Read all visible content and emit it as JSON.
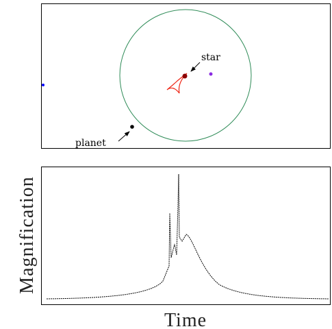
{
  "upper_panel": {
    "star_label": "star",
    "planet_label": "planet"
  },
  "lower_panel": {
    "y_label": "Magnification",
    "x_label": "Time"
  }
}
